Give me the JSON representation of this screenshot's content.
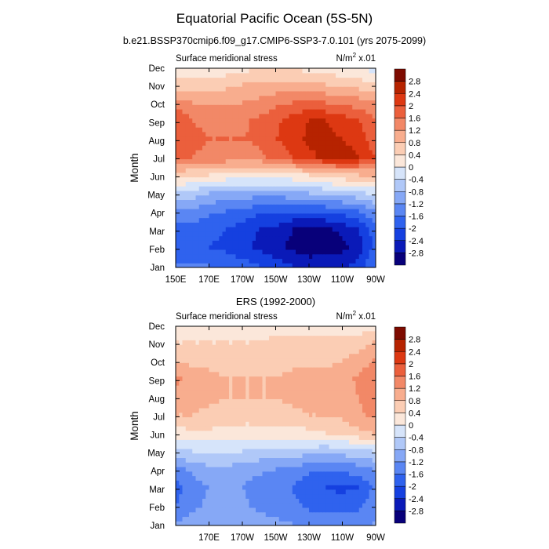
{
  "figure": {
    "title": "Equatorial Pacific Ocean (5S-5N)",
    "subtitle": "b.e21.BSSP370cmip6.f09_g17.CMIP6-SSP3-7.0.101 (yrs 2075-2099)"
  },
  "colors": {
    "palette": [
      "#08007a",
      "#0a1ab8",
      "#1540e0",
      "#2f62ee",
      "#5a86f3",
      "#86a8f6",
      "#b0c8f8",
      "#d6e4fa",
      "#fbe7da",
      "#fbcdb4",
      "#f8ad8e",
      "#f28867",
      "#eb5f3c",
      "#dd3812",
      "#b62300",
      "#7e0b00"
    ]
  },
  "chart_data": [
    {
      "type": "heatmap",
      "title": "",
      "left_label": "Surface meridional stress",
      "right_label": "N/m",
      "right_label_sup": "2",
      "right_label_suffix": " x.01",
      "ylabel": "Month",
      "xlabel": "",
      "x_ticks": [
        "150E",
        "170E",
        "170W",
        "150W",
        "130W",
        "110W",
        "90W"
      ],
      "x_tick_values": [
        150,
        170,
        190,
        210,
        230,
        250,
        270
      ],
      "xlim": [
        150,
        270
      ],
      "y_ticks": [
        "Jan",
        "Feb",
        "Mar",
        "Apr",
        "May",
        "Jun",
        "Jul",
        "Aug",
        "Sep",
        "Oct",
        "Nov",
        "Dec"
      ],
      "colorbar_levels": [
        "-2.8",
        "-2.4",
        "-2",
        "-1.6",
        "-1.2",
        "-0.8",
        "-0.4",
        "0",
        "0.4",
        "0.8",
        "1.2",
        "1.6",
        "2",
        "2.4",
        "2.8"
      ],
      "lon": [
        150,
        160,
        170,
        180,
        190,
        200,
        210,
        220,
        230,
        240,
        250,
        260,
        268
      ],
      "values": [
        [
          -1.6,
          -1.5,
          -1.6,
          -1.7,
          -1.8,
          -2.0,
          -2.2,
          -2.4,
          -2.6,
          -2.6,
          -2.5,
          -2.3,
          -1.7
        ],
        [
          -2.0,
          -1.9,
          -2.0,
          -2.1,
          -2.3,
          -2.5,
          -2.7,
          -2.9,
          -3.0,
          -3.0,
          -2.9,
          -2.6,
          -2.0
        ],
        [
          -1.9,
          -1.8,
          -1.9,
          -2.0,
          -2.2,
          -2.4,
          -2.5,
          -2.8,
          -2.9,
          -2.9,
          -2.7,
          -2.4,
          -1.9
        ],
        [
          -1.2,
          -1.3,
          -1.5,
          -1.6,
          -1.7,
          -1.9,
          -2.0,
          -2.0,
          -2.0,
          -1.9,
          -1.8,
          -1.6,
          -1.3
        ],
        [
          -0.4,
          -0.6,
          -0.8,
          -0.9,
          -1.0,
          -1.0,
          -1.0,
          -0.9,
          -0.8,
          -0.7,
          -0.6,
          -0.5,
          -0.3
        ],
        [
          0.5,
          0.5,
          0.4,
          0.3,
          0.3,
          0.2,
          0.2,
          0.3,
          0.4,
          0.6,
          0.7,
          0.8,
          0.8
        ],
        [
          1.8,
          1.6,
          1.5,
          1.5,
          1.4,
          1.5,
          1.7,
          2.0,
          2.3,
          2.5,
          2.6,
          2.4,
          2.0
        ],
        [
          2.0,
          1.7,
          1.6,
          1.6,
          1.6,
          1.7,
          2.0,
          2.2,
          2.5,
          2.5,
          2.4,
          2.2,
          1.8
        ],
        [
          2.0,
          1.6,
          1.5,
          1.5,
          1.5,
          1.7,
          1.9,
          2.2,
          2.4,
          2.4,
          2.2,
          2.0,
          1.7
        ],
        [
          1.4,
          1.2,
          1.1,
          1.1,
          1.2,
          1.3,
          1.5,
          1.6,
          1.7,
          1.6,
          1.5,
          1.4,
          1.2
        ],
        [
          0.6,
          0.6,
          0.6,
          0.7,
          0.8,
          0.9,
          0.9,
          0.9,
          0.9,
          0.8,
          0.7,
          0.6,
          0.5
        ],
        [
          -0.2,
          -0.1,
          0.0,
          0.1,
          0.2,
          0.3,
          0.3,
          0.3,
          0.2,
          0.1,
          0.0,
          -0.1,
          -0.2
        ]
      ]
    },
    {
      "type": "heatmap",
      "title": "ERS (1992-2000)",
      "left_label": "Surface meridional stress",
      "right_label": "N/m",
      "right_label_sup": "2",
      "right_label_suffix": " x.01",
      "ylabel": "Month",
      "xlabel": "",
      "x_ticks": [
        "170E",
        "170W",
        "150W",
        "130W",
        "110W",
        "90W"
      ],
      "x_tick_values": [
        170,
        190,
        210,
        230,
        250,
        270
      ],
      "xlim": [
        150,
        270
      ],
      "y_ticks": [
        "Jan",
        "Feb",
        "Mar",
        "Apr",
        "May",
        "Jun",
        "Jul",
        "Aug",
        "Sep",
        "Oct",
        "Nov",
        "Dec"
      ],
      "colorbar_levels": [
        "-2.8",
        "-2.4",
        "-2",
        "-1.6",
        "-1.2",
        "-0.8",
        "-0.4",
        "0",
        "0.4",
        "0.8",
        "1.2",
        "1.6",
        "2",
        "2.4",
        "2.8"
      ],
      "lon": [
        150,
        160,
        170,
        180,
        190,
        200,
        210,
        220,
        230,
        240,
        250,
        260,
        268
      ],
      "values": [
        [
          -1.2,
          -1.0,
          -0.9,
          -0.8,
          -0.9,
          -1.0,
          -1.1,
          -1.2,
          -1.3,
          -1.3,
          -1.4,
          -1.3,
          -1.2
        ],
        [
          -1.6,
          -1.3,
          -1.1,
          -1.0,
          -1.1,
          -1.3,
          -1.4,
          -1.5,
          -1.7,
          -1.8,
          -1.8,
          -1.7,
          -1.4
        ],
        [
          -1.8,
          -1.4,
          -1.2,
          -1.1,
          -1.2,
          -1.4,
          -1.5,
          -1.6,
          -1.9,
          -2.0,
          -2.1,
          -2.0,
          -1.6
        ],
        [
          -1.3,
          -1.1,
          -0.9,
          -0.9,
          -1.0,
          -1.1,
          -1.2,
          -1.3,
          -1.5,
          -1.6,
          -1.5,
          -1.4,
          -1.2
        ],
        [
          -0.5,
          -0.4,
          -0.4,
          -0.4,
          -0.4,
          -0.5,
          -0.5,
          -0.6,
          -0.6,
          -0.7,
          -0.6,
          -0.5,
          -0.4
        ],
        [
          0.2,
          0.3,
          0.3,
          0.3,
          0.2,
          0.2,
          0.2,
          0.2,
          0.3,
          0.4,
          0.5,
          0.7,
          0.8
        ],
        [
          0.8,
          0.8,
          0.7,
          0.7,
          0.6,
          0.6,
          0.7,
          0.7,
          0.8,
          0.8,
          0.9,
          1.1,
          1.3
        ],
        [
          1.0,
          0.9,
          0.9,
          0.8,
          0.8,
          0.8,
          0.8,
          0.9,
          0.9,
          0.9,
          1.0,
          1.2,
          1.4
        ],
        [
          1.3,
          1.0,
          0.9,
          0.8,
          0.8,
          0.8,
          0.8,
          0.9,
          0.9,
          0.9,
          1.0,
          1.3,
          1.4
        ],
        [
          0.8,
          0.7,
          0.7,
          0.6,
          0.6,
          0.7,
          0.7,
          0.7,
          0.7,
          0.7,
          0.8,
          1.0,
          1.2
        ],
        [
          0.4,
          0.4,
          0.4,
          0.4,
          0.4,
          0.4,
          0.5,
          0.5,
          0.5,
          0.5,
          0.5,
          0.6,
          0.8
        ],
        [
          -0.1,
          0.0,
          0.1,
          0.1,
          0.2,
          0.2,
          0.2,
          0.2,
          0.2,
          0.1,
          0.1,
          0.1,
          0.2
        ]
      ]
    }
  ]
}
